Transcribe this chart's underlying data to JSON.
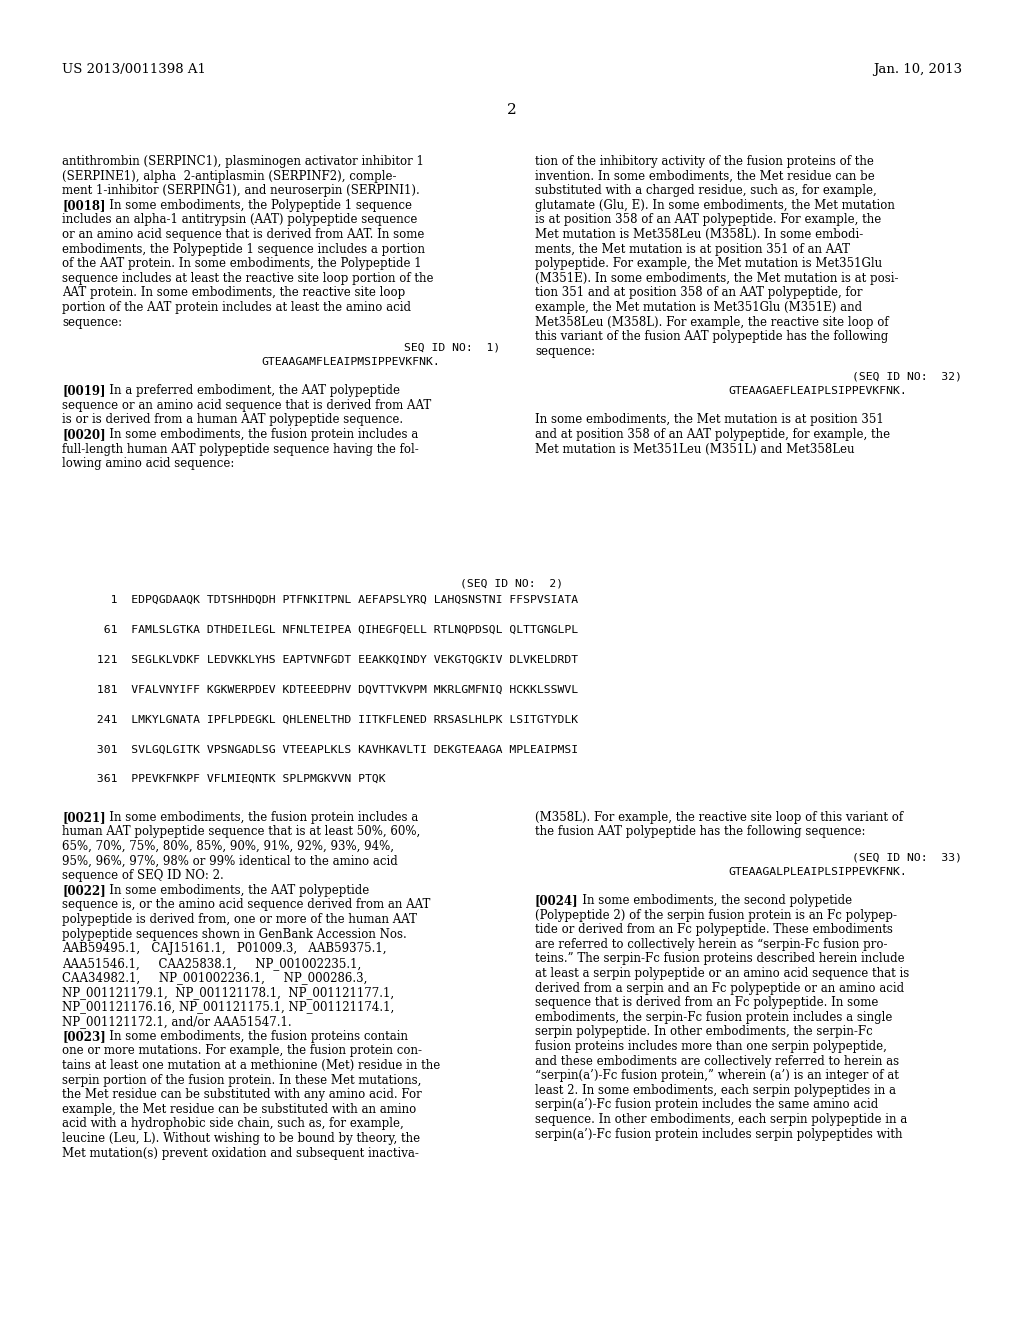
{
  "background_color": "#ffffff",
  "header_left": "US 2013/0011398 A1",
  "header_right": "Jan. 10, 2013",
  "page_number": "2",
  "left_col_lines": [
    {
      "text": "antithrombin (SERPINC1), plasminogen activator inhibitor 1",
      "type": "body"
    },
    {
      "text": "(SERPINE1), alpha  2-antiplasmin (SERPINF2), comple-",
      "type": "body"
    },
    {
      "text": "ment 1-inhibitor (SERPING1), and neuroserpin (SERPINI1).",
      "type": "body"
    },
    {
      "text": "[0018]",
      "bold": true,
      "rest": "   In some embodiments, the Polypeptide 1 sequence",
      "type": "para"
    },
    {
      "text": "includes an alpha-1 antitrypsin (AAT) polypeptide sequence",
      "type": "body"
    },
    {
      "text": "or an amino acid sequence that is derived from AAT. In some",
      "type": "body"
    },
    {
      "text": "embodiments, the Polypeptide 1 sequence includes a portion",
      "type": "body"
    },
    {
      "text": "of the AAT protein. In some embodiments, the Polypeptide 1",
      "type": "body"
    },
    {
      "text": "sequence includes at least the reactive site loop portion of the",
      "type": "body"
    },
    {
      "text": "AAT protein. In some embodiments, the reactive site loop",
      "type": "body"
    },
    {
      "text": "portion of the AAT protein includes at least the amino acid",
      "type": "body"
    },
    {
      "text": "sequence:",
      "type": "body"
    },
    {
      "text": "",
      "type": "blank"
    },
    {
      "text": "SEQ ID NO:  1)",
      "type": "seq_label",
      "align": "right_in_col"
    },
    {
      "text": "GTEAAGAMFLEAIPMSIPPEVKFNK.",
      "type": "seq_data"
    },
    {
      "text": "",
      "type": "blank"
    },
    {
      "text": "[0019]",
      "bold": true,
      "rest": "   In a preferred embodiment, the AAT polypeptide",
      "type": "para"
    },
    {
      "text": "sequence or an amino acid sequence that is derived from AAT",
      "type": "body"
    },
    {
      "text": "is or is derived from a human AAT polypeptide sequence.",
      "type": "body"
    },
    {
      "text": "[0020]",
      "bold": true,
      "rest": "   In some embodiments, the fusion protein includes a",
      "type": "para"
    },
    {
      "text": "full-length human AAT polypeptide sequence having the fol-",
      "type": "body"
    },
    {
      "text": "lowing amino acid sequence:",
      "type": "body"
    }
  ],
  "right_col_lines": [
    {
      "text": "tion of the inhibitory activity of the fusion proteins of the",
      "type": "body"
    },
    {
      "text": "invention. In some embodiments, the Met residue can be",
      "type": "body"
    },
    {
      "text": "substituted with a charged residue, such as, for example,",
      "type": "body"
    },
    {
      "text": "glutamate (Glu, E). In some embodiments, the Met mutation",
      "type": "body"
    },
    {
      "text": "is at position 358 of an AAT polypeptide. For example, the",
      "type": "body"
    },
    {
      "text": "Met mutation is Met358Leu (M358L). In some embodi-",
      "type": "body"
    },
    {
      "text": "ments, the Met mutation is at position 351 of an AAT",
      "type": "body"
    },
    {
      "text": "polypeptide. For example, the Met mutation is Met351Glu",
      "type": "body"
    },
    {
      "text": "(M351E). In some embodiments, the Met mutation is at posi-",
      "type": "body"
    },
    {
      "text": "tion 351 and at position 358 of an AAT polypeptide, for",
      "type": "body"
    },
    {
      "text": "example, the Met mutation is Met351Glu (M351E) and",
      "type": "body"
    },
    {
      "text": "Met358Leu (M358L). For example, the reactive site loop of",
      "type": "body"
    },
    {
      "text": "this variant of the fusion AAT polypeptide has the following",
      "type": "body"
    },
    {
      "text": "sequence:",
      "type": "body"
    },
    {
      "text": "",
      "type": "blank"
    },
    {
      "text": "(SEQ ID NO:  32)",
      "type": "seq_label_right"
    },
    {
      "text": "GTEAAGAEFLEAIPLSIPPEVKFNK.",
      "type": "seq_data_right"
    },
    {
      "text": "",
      "type": "blank"
    },
    {
      "text": "In some embodiments, the Met mutation is at position 351",
      "type": "body"
    },
    {
      "text": "and at position 358 of an AAT polypeptide, for example, the",
      "type": "body"
    },
    {
      "text": "Met mutation is Met351Leu (M351L) and Met358Leu",
      "type": "body"
    }
  ],
  "seq_id_no2_label": "(SEQ ID NO:  2)",
  "seq_lines": [
    "   1  EDPQGDAAQK TDTSHHDQDH PTFNKITPNL AEFAPSLYRQ LAHQSNSTNI FFSPVSIATA",
    "",
    "  61  FAMLSLGTKA DTHDEILEGL NFNLTEIPEA QIHEGFQELL RTLNQPDSQL QLTTGNGLPL",
    "",
    " 121  SEGLKLVDKF LEDVKKLYHS EAPTVNFGDT EEAKKQINDY VEKGTQGKIV DLVKELDRDT",
    "",
    " 181  VFALVNYIFF KGKWERPDEV KDTEEEDPHV DQVTTVKVPM MKRLGMFNIQ HCKKLSSWVL",
    "",
    " 241  LMKYLGNATA IPFLPDEGKL QHLENELTHD IITKFLENED RRSASLHLPK LSITGTYDLK",
    "",
    " 301  SVLGQLGITK VPSNGADLSG VTEEAPLKLS KAVHKAVLTI DEKGTEAAGA MPLEAIPMSI",
    "",
    " 361  PPEVKFNKPF VFLMIEQNTK SPLPMGKVVN PTQK"
  ],
  "bottom_left_lines": [
    {
      "text": "[0021]",
      "bold": true,
      "rest": "   In some embodiments, the fusion protein includes a",
      "type": "para"
    },
    {
      "text": "human AAT polypeptide sequence that is at least 50%, 60%,",
      "type": "body"
    },
    {
      "text": "65%, 70%, 75%, 80%, 85%, 90%, 91%, 92%, 93%, 94%,",
      "type": "body"
    },
    {
      "text": "95%, 96%, 97%, 98% or 99% identical to the amino acid",
      "type": "body"
    },
    {
      "text": "sequence of SEQ ID NO: 2.",
      "type": "body"
    },
    {
      "text": "[0022]",
      "bold": true,
      "rest": "   In some embodiments, the AAT polypeptide",
      "type": "para"
    },
    {
      "text": "sequence is, or the amino acid sequence derived from an AAT",
      "type": "body"
    },
    {
      "text": "polypeptide is derived from, one or more of the human AAT",
      "type": "body"
    },
    {
      "text": "polypeptide sequences shown in GenBank Accession Nos.",
      "type": "body"
    },
    {
      "text": "AAB59495.1,   CAJ15161.1,   P01009.3,   AAB59375.1,",
      "type": "body"
    },
    {
      "text": "AAA51546.1,     CAA25838.1,     NP_001002235.1,",
      "type": "body"
    },
    {
      "text": "CAA34982.1,     NP_001002236.1,     NP_000286.3,",
      "type": "body"
    },
    {
      "text": "NP_001121179.1,  NP_001121178.1,  NP_001121177.1,",
      "type": "body"
    },
    {
      "text": "NP_001121176.16, NP_001121175.1, NP_001121174.1,",
      "type": "body"
    },
    {
      "text": "NP_001121172.1, and/or AAA51547.1.",
      "type": "body"
    },
    {
      "text": "[0023]",
      "bold": true,
      "rest": "   In some embodiments, the fusion proteins contain",
      "type": "para"
    },
    {
      "text": "one or more mutations. For example, the fusion protein con-",
      "type": "body"
    },
    {
      "text": "tains at least one mutation at a methionine (Met) residue in the",
      "type": "body"
    },
    {
      "text": "serpin portion of the fusion protein. In these Met mutations,",
      "type": "body"
    },
    {
      "text": "the Met residue can be substituted with any amino acid. For",
      "type": "body"
    },
    {
      "text": "example, the Met residue can be substituted with an amino",
      "type": "body"
    },
    {
      "text": "acid with a hydrophobic side chain, such as, for example,",
      "type": "body"
    },
    {
      "text": "leucine (Leu, L). Without wishing to be bound by theory, the",
      "type": "body"
    },
    {
      "text": "Met mutation(s) prevent oxidation and subsequent inactiva-",
      "type": "body"
    }
  ],
  "bottom_right_lines": [
    {
      "text": "(M358L). For example, the reactive site loop of this variant of",
      "type": "body"
    },
    {
      "text": "the fusion AAT polypeptide has the following sequence:",
      "type": "body"
    },
    {
      "text": "",
      "type": "blank"
    },
    {
      "text": "(SEQ ID NO:  33)",
      "type": "seq_label_right"
    },
    {
      "text": "GTEAAGALPLEAIPLSIPPEVKFNK.",
      "type": "seq_data_right"
    },
    {
      "text": "",
      "type": "blank"
    },
    {
      "text": "[0024]",
      "bold": true,
      "rest": "   In some embodiments, the second polypetide",
      "type": "para"
    },
    {
      "text": "(Polypeptide 2) of the serpin fusion protein is an Fc polypep-",
      "type": "body"
    },
    {
      "text": "tide or derived from an Fc polypeptide. These embodiments",
      "type": "body"
    },
    {
      "text": "are referred to collectively herein as “serpin-Fc fusion pro-",
      "type": "body"
    },
    {
      "text": "teins.” The serpin-Fc fusion proteins described herein include",
      "type": "body"
    },
    {
      "text": "at least a serpin polypeptide or an amino acid sequence that is",
      "type": "body"
    },
    {
      "text": "derived from a serpin and an Fc polypeptide or an amino acid",
      "type": "body"
    },
    {
      "text": "sequence that is derived from an Fc polypeptide. In some",
      "type": "body"
    },
    {
      "text": "embodiments, the serpin-Fc fusion protein includes a single",
      "type": "body"
    },
    {
      "text": "serpin polypeptide. In other embodiments, the serpin-Fc",
      "type": "body"
    },
    {
      "text": "fusion proteins includes more than one serpin polypeptide,",
      "type": "body"
    },
    {
      "text": "and these embodiments are collectively referred to herein as",
      "type": "body"
    },
    {
      "text": "“serpin(a’)-Fc fusion protein,” wherein (a’) is an integer of at",
      "type": "body"
    },
    {
      "text": "least 2. In some embodiments, each serpin polypeptides in a",
      "type": "body"
    },
    {
      "text": "serpin(a’)-Fc fusion protein includes the same amino acid",
      "type": "body"
    },
    {
      "text": "sequence. In other embodiments, each serpin polypeptide in a",
      "type": "body"
    },
    {
      "text": "serpin(a’)-Fc fusion protein includes serpin polypeptides with",
      "type": "body"
    }
  ]
}
